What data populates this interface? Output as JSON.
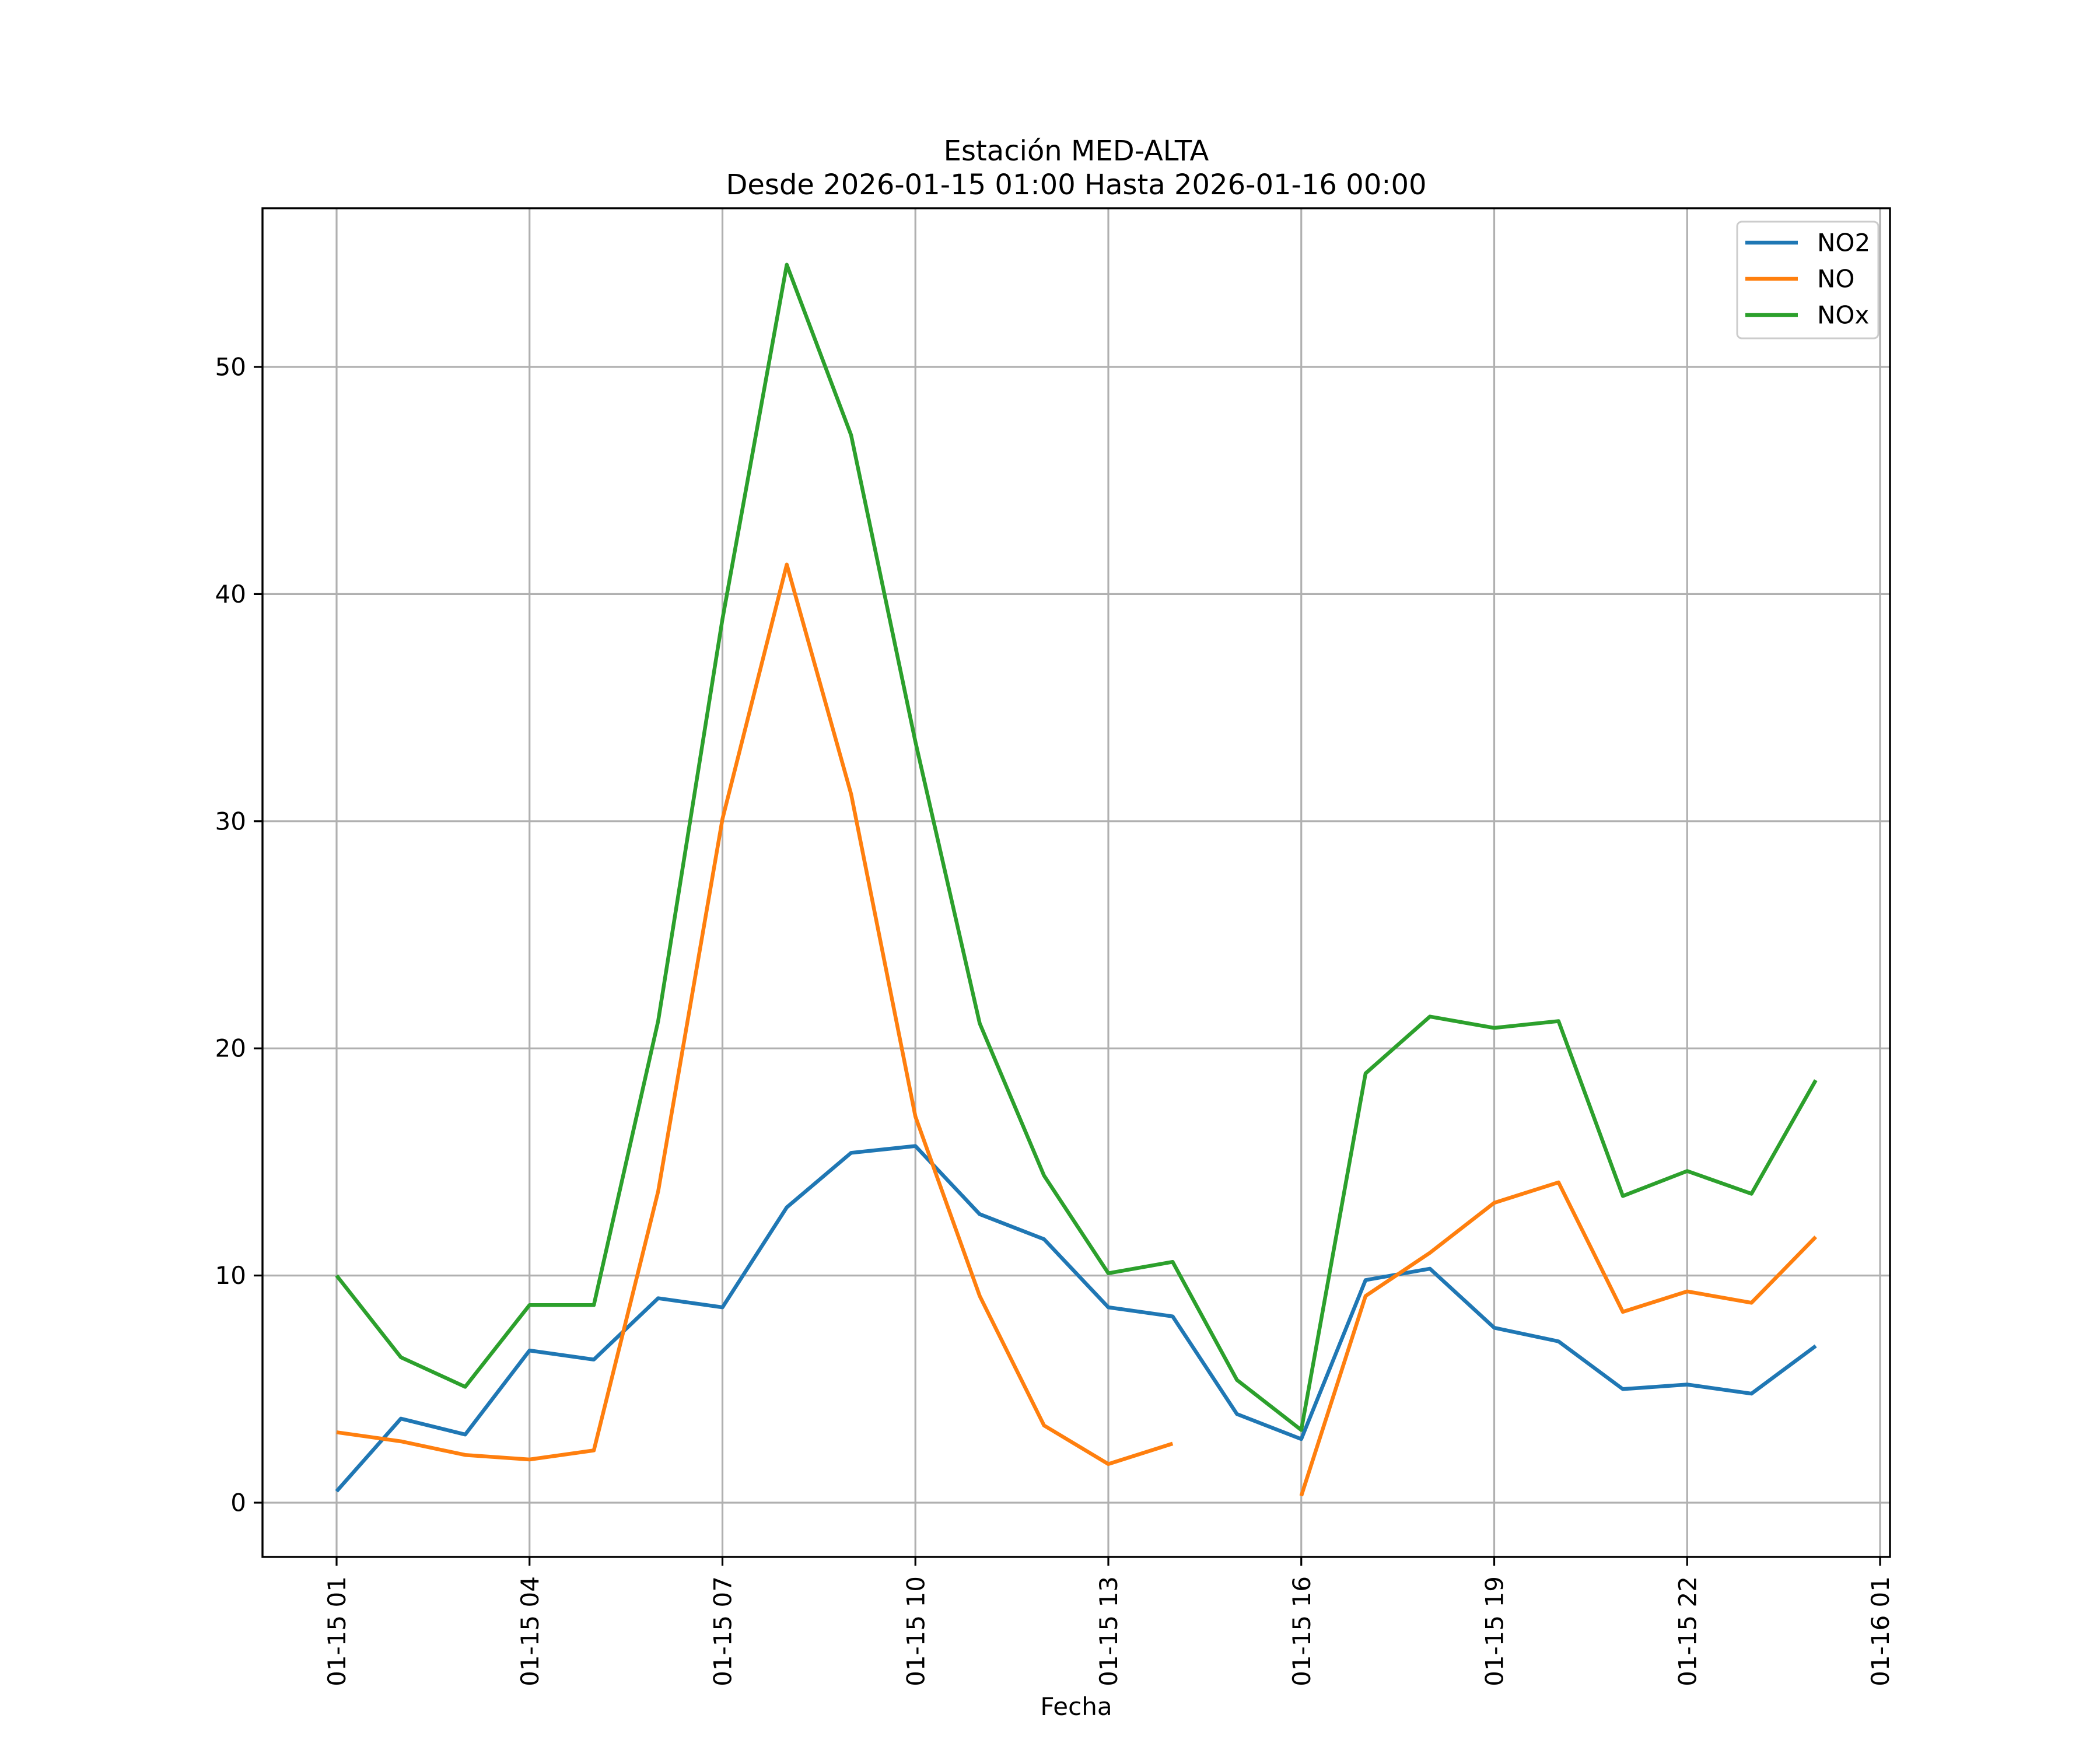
{
  "title": {
    "line1": "Estación MED-ALTA",
    "line2": "Desde 2026-01-15 01:00 Hasta 2026-01-16 00:00"
  },
  "chart_data": {
    "type": "line",
    "title": "Estación MED-ALTA",
    "subtitle": "Desde 2026-01-15 01:00 Hasta 2026-01-16 00:00",
    "xlabel": "Fecha",
    "ylabel": "",
    "grid": true,
    "legend_position": "upper right",
    "y_ticks": [
      0,
      10,
      20,
      30,
      40,
      50
    ],
    "ylim": [
      -2.4,
      57.2
    ],
    "x_tick_labels": [
      "01-15 01",
      "01-15 04",
      "01-15 07",
      "01-15 10",
      "01-15 13",
      "01-15 16",
      "01-15 19",
      "01-15 22",
      "01-16 01"
    ],
    "x_times": [
      "01-15 01",
      "01-15 02",
      "01-15 03",
      "01-15 04",
      "01-15 05",
      "01-15 06",
      "01-15 07",
      "01-15 08",
      "01-15 09",
      "01-15 10",
      "01-15 11",
      "01-15 12",
      "01-15 13",
      "01-15 14",
      "01-15 15",
      "01-15 16",
      "01-15 17",
      "01-15 18",
      "01-15 19",
      "01-15 20",
      "01-15 21",
      "01-15 22",
      "01-15 23",
      "01-16 00"
    ],
    "series": [
      {
        "name": "NO2",
        "color": "#1f77b4",
        "values": [
          0.5,
          3.7,
          3.0,
          6.7,
          6.3,
          9.0,
          8.6,
          13.0,
          15.4,
          15.7,
          12.7,
          11.6,
          8.6,
          8.2,
          3.9,
          2.8,
          9.8,
          10.3,
          7.7,
          7.1,
          5.0,
          5.2,
          4.8,
          6.9
        ]
      },
      {
        "name": "NO",
        "color": "#ff7f0e",
        "values": [
          3.1,
          2.7,
          2.1,
          1.9,
          2.3,
          13.7,
          30.1,
          41.3,
          31.2,
          17.0,
          9.1,
          3.4,
          1.7,
          2.6,
          null,
          0.3,
          9.1,
          11.0,
          13.2,
          14.1,
          8.4,
          9.3,
          8.8,
          11.7
        ]
      },
      {
        "name": "NOx",
        "color": "#2ca02c",
        "values": [
          10.0,
          6.4,
          5.1,
          8.7,
          8.7,
          21.2,
          38.9,
          54.5,
          47.0,
          33.5,
          21.1,
          14.4,
          10.1,
          10.6,
          5.4,
          3.2,
          18.9,
          21.4,
          20.9,
          21.2,
          13.5,
          14.6,
          13.6,
          18.6
        ]
      }
    ]
  }
}
